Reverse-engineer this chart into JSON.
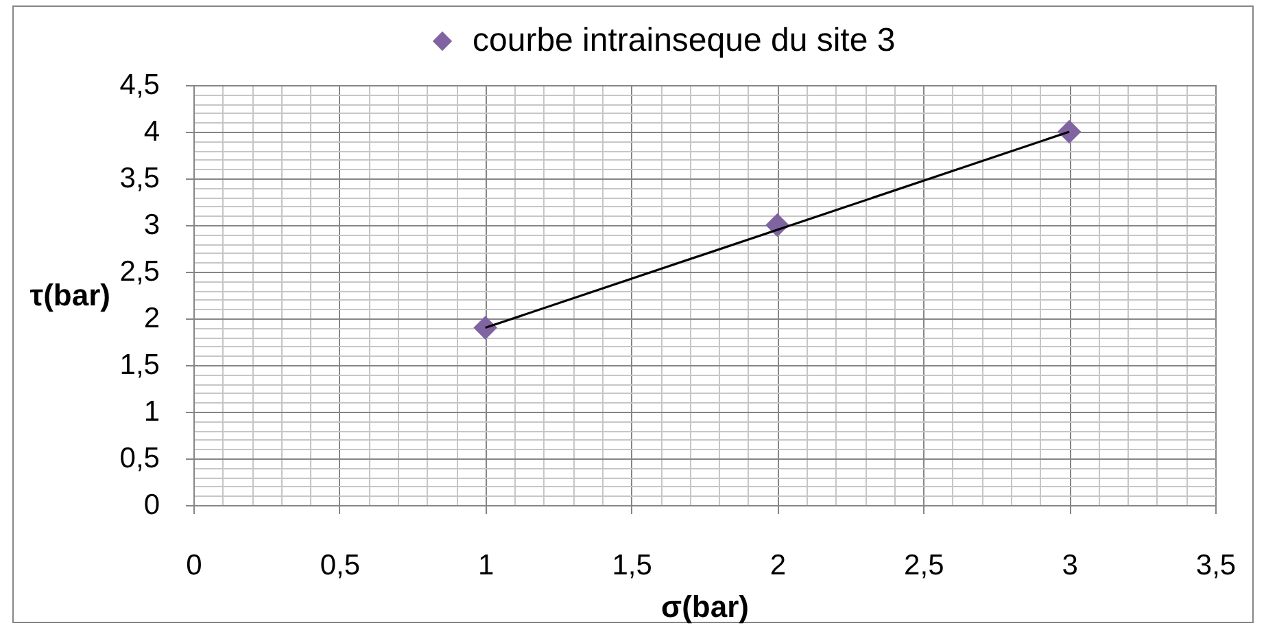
{
  "chart_data": {
    "type": "scatter",
    "xlabel": "σ(bar)",
    "ylabel": "τ(bar)",
    "x": [
      1,
      2,
      3
    ],
    "series": [
      {
        "name": "courbe intrainseque du site 3",
        "color": "#8064a2",
        "values": [
          1.9,
          3,
          4
        ]
      },
      {
        "type": "line",
        "x": [
          1,
          3
        ],
        "values": [
          1.9,
          4
        ],
        "color": "#000000",
        "marker": "none"
      }
    ],
    "xlim": [
      0,
      3.5
    ],
    "xticks": [
      0,
      {
        "value": 0.1,
        "label": null
      },
      {
        "value": 0.2,
        "label": null
      },
      {
        "value": 0.3,
        "label": null
      },
      {
        "value": 0.4,
        "label": null
      },
      {
        "value": 0.5,
        "label": "0,5"
      },
      {
        "value": 0.6,
        "label": null
      },
      {
        "value": 0.7,
        "label": null
      },
      {
        "value": 0.8,
        "label": null
      },
      {
        "value": 0.9,
        "label": null
      },
      1,
      {
        "value": 1.1,
        "label": null
      },
      {
        "value": 1.2,
        "label": null
      },
      {
        "value": 1.3,
        "label": null
      },
      {
        "value": 1.4,
        "label": null
      },
      {
        "value": 1.5,
        "label": "1,5"
      },
      {
        "value": 1.6,
        "label": null
      },
      {
        "value": 1.7,
        "label": null
      },
      {
        "value": 1.8,
        "label": null
      },
      {
        "value": 1.9,
        "label": null
      },
      2,
      {
        "value": 2.1,
        "label": null
      },
      {
        "value": 2.2,
        "label": null
      },
      {
        "value": 2.3,
        "label": null
      },
      {
        "value": 2.4,
        "label": null
      },
      {
        "value": 2.5,
        "label": "2,5"
      },
      {
        "value": 2.6,
        "label": null
      },
      {
        "value": 2.7,
        "label": null
      },
      {
        "value": 2.8,
        "label": null
      },
      {
        "value": 2.9,
        "label": null
      },
      3,
      {
        "value": 3.1,
        "label": null
      },
      {
        "value": 3.2,
        "label": null
      },
      {
        "value": 3.3,
        "label": null
      },
      {
        "value": 3.4,
        "label": null
      },
      {
        "value": 3.5,
        "label": "3,5"
      }
    ],
    "ylim": [
      0,
      4.5
    ],
    "yticks": [
      0,
      {
        "value": 0.1,
        "label": null
      },
      {
        "value": 0.2,
        "label": null
      },
      {
        "value": 0.3,
        "label": null
      },
      {
        "value": 0.4,
        "label": null
      },
      {
        "value": 0.5,
        "label": "0,5"
      },
      {
        "value": 0.6,
        "label": null
      },
      {
        "value": 0.7,
        "label": null
      },
      {
        "value": 0.8,
        "label": null
      },
      {
        "value": 0.9,
        "label": null
      },
      1,
      {
        "value": 1.1,
        "label": null
      },
      {
        "value": 1.2,
        "label": null
      },
      {
        "value": 1.3,
        "label": null
      },
      {
        "value": 1.4,
        "label": null
      },
      {
        "value": 1.5,
        "label": "1,5"
      },
      {
        "value": 1.6,
        "label": null
      },
      {
        "value": 1.7,
        "label": null
      },
      {
        "value": 1.8,
        "label": null
      },
      {
        "value": 1.9,
        "label": null
      },
      2,
      {
        "value": 2.1,
        "label": null
      },
      {
        "value": 2.2,
        "label": null
      },
      {
        "value": 2.3,
        "label": null
      },
      {
        "value": 2.4,
        "label": null
      },
      {
        "value": 2.5,
        "label": "2,5"
      },
      {
        "value": 2.6,
        "label": null
      },
      {
        "value": 2.7,
        "label": null
      },
      {
        "value": 2.8,
        "label": null
      },
      {
        "value": 2.9,
        "label": null
      },
      3,
      {
        "value": 3.1,
        "label": null
      },
      {
        "value": 3.2,
        "label": null
      },
      {
        "value": 3.3,
        "label": null
      },
      {
        "value": 3.4,
        "label": null
      },
      {
        "value": 3.5,
        "label": "3,5"
      },
      {
        "value": 3.6,
        "label": null
      },
      {
        "value": 3.7,
        "label": null
      },
      {
        "value": 3.8,
        "label": null
      },
      {
        "value": 3.9,
        "label": null
      },
      4,
      {
        "value": 4.1,
        "label": null
      },
      {
        "value": 4.2,
        "label": null
      },
      {
        "value": 4.3,
        "label": null
      },
      {
        "value": 4.4,
        "label": null
      },
      {
        "value": 4.5,
        "label": "4,5"
      }
    ],
    "grid": true,
    "legend": "top",
    "marker": "diamond"
  }
}
